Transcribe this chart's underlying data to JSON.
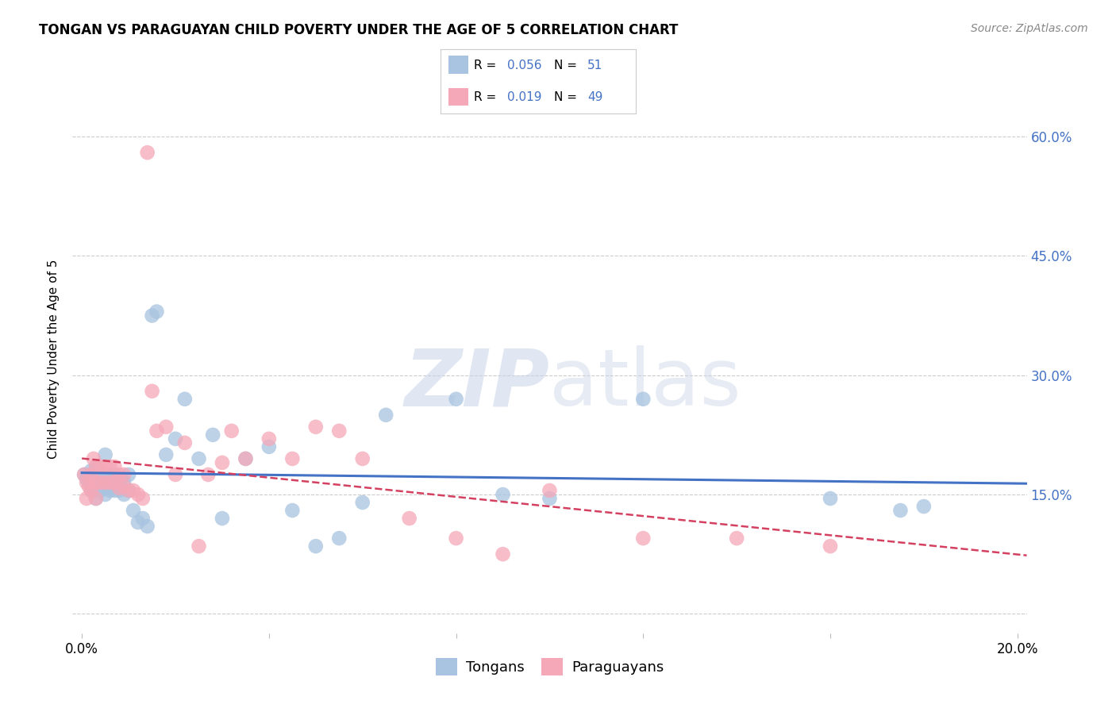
{
  "title": "TONGAN VS PARAGUAYAN CHILD POVERTY UNDER THE AGE OF 5 CORRELATION CHART",
  "source": "Source: ZipAtlas.com",
  "ylabel": "Child Poverty Under the Age of 5",
  "y_ticks": [
    0.0,
    0.15,
    0.3,
    0.45,
    0.6
  ],
  "x_ticks": [
    0.0,
    0.04,
    0.08,
    0.12,
    0.16,
    0.2
  ],
  "x_tick_labels": [
    "0.0%",
    "",
    "",
    "",
    "",
    "20.0%"
  ],
  "xlim": [
    -0.002,
    0.202
  ],
  "ylim": [
    -0.025,
    0.665
  ],
  "tongan_R": 0.056,
  "tongan_N": 51,
  "paraguayan_R": 0.019,
  "paraguayan_N": 49,
  "tongan_color": "#a8c4e0",
  "paraguayan_color": "#f5a8b8",
  "tongan_line_color": "#4472c4",
  "paraguayan_line_color": "#d44060",
  "legend_label_tongan": "Tongans",
  "legend_label_paraguayan": "Paraguayans",
  "watermark_zip": "ZIP",
  "watermark_atlas": "atlas",
  "background_color": "#ffffff",
  "grid_color": "#cccccc",
  "right_axis_color": "#4472c4",
  "right_tick_labels": [
    "",
    "15.0%",
    "30.0%",
    "45.0%",
    "60.0%"
  ],
  "tongan_x": [
    0.0005,
    0.001,
    0.0015,
    0.002,
    0.002,
    0.0025,
    0.003,
    0.003,
    0.003,
    0.0035,
    0.004,
    0.004,
    0.005,
    0.005,
    0.005,
    0.006,
    0.006,
    0.007,
    0.007,
    0.008,
    0.008,
    0.009,
    0.009,
    0.01,
    0.01,
    0.011,
    0.012,
    0.013,
    0.014,
    0.015,
    0.016,
    0.018,
    0.02,
    0.022,
    0.025,
    0.028,
    0.03,
    0.035,
    0.04,
    0.045,
    0.05,
    0.055,
    0.06,
    0.065,
    0.08,
    0.09,
    0.1,
    0.12,
    0.16,
    0.175,
    0.18
  ],
  "tongan_y": [
    0.175,
    0.17,
    0.165,
    0.18,
    0.155,
    0.16,
    0.185,
    0.155,
    0.145,
    0.17,
    0.165,
    0.155,
    0.2,
    0.175,
    0.15,
    0.17,
    0.155,
    0.175,
    0.155,
    0.165,
    0.155,
    0.165,
    0.15,
    0.175,
    0.155,
    0.13,
    0.115,
    0.12,
    0.11,
    0.375,
    0.38,
    0.2,
    0.22,
    0.27,
    0.195,
    0.225,
    0.12,
    0.195,
    0.21,
    0.13,
    0.085,
    0.095,
    0.14,
    0.25,
    0.27,
    0.15,
    0.145,
    0.27,
    0.145,
    0.13,
    0.135
  ],
  "paraguayan_x": [
    0.0005,
    0.001,
    0.001,
    0.0015,
    0.002,
    0.002,
    0.0025,
    0.003,
    0.003,
    0.003,
    0.004,
    0.004,
    0.005,
    0.005,
    0.006,
    0.006,
    0.007,
    0.007,
    0.008,
    0.008,
    0.009,
    0.009,
    0.01,
    0.011,
    0.012,
    0.013,
    0.014,
    0.015,
    0.016,
    0.018,
    0.02,
    0.022,
    0.025,
    0.027,
    0.03,
    0.032,
    0.035,
    0.04,
    0.045,
    0.05,
    0.055,
    0.06,
    0.07,
    0.08,
    0.09,
    0.1,
    0.12,
    0.14,
    0.16
  ],
  "paraguayan_y": [
    0.175,
    0.165,
    0.145,
    0.16,
    0.175,
    0.155,
    0.195,
    0.185,
    0.165,
    0.145,
    0.185,
    0.165,
    0.185,
    0.165,
    0.185,
    0.165,
    0.185,
    0.165,
    0.175,
    0.158,
    0.175,
    0.16,
    0.155,
    0.155,
    0.15,
    0.145,
    0.58,
    0.28,
    0.23,
    0.235,
    0.175,
    0.215,
    0.085,
    0.175,
    0.19,
    0.23,
    0.195,
    0.22,
    0.195,
    0.235,
    0.23,
    0.195,
    0.12,
    0.095,
    0.075,
    0.155,
    0.095,
    0.095,
    0.085
  ]
}
